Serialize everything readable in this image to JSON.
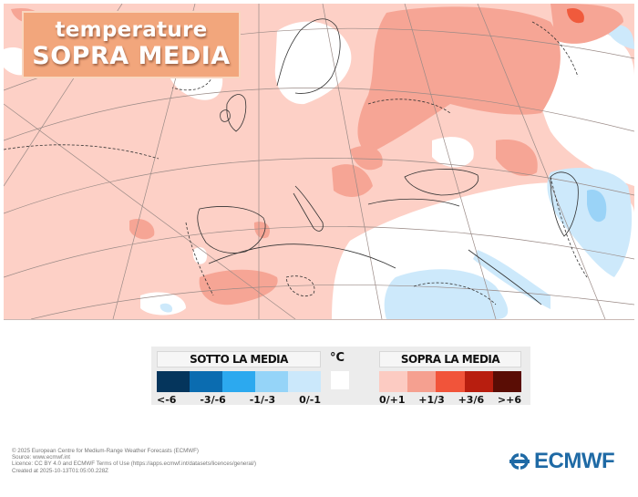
{
  "title": {
    "line1": "temperature",
    "line2": "SOPRA MEDIA"
  },
  "map": {
    "description": "ECMWF temperature anomaly map over Europe, North Atlantic, North Africa and Middle East",
    "colors": {
      "background_anomaly": "#fdd0c6",
      "plus_1_3": "#f6a595",
      "plus_3_6": "#f05a3c",
      "neutral": "#ffffff",
      "minus_0_1": "#cde9fb",
      "minus_1_3": "#9ad3f7"
    }
  },
  "legend": {
    "below": {
      "header": "SOTTO LA MEDIA",
      "items": [
        {
          "label": "<-6",
          "color": "#05355c"
        },
        {
          "label": "-3/-6",
          "color": "#0b6cb0"
        },
        {
          "label": "-1/-3",
          "color": "#2ca9ef"
        },
        {
          "label": "0/-1",
          "color": "#95d4f8"
        },
        {
          "label": "",
          "color": "#cbe8fb"
        }
      ],
      "labels": [
        "<-6",
        "-3/-6",
        "-1/-3",
        "0/-1"
      ]
    },
    "unit": "°C",
    "neutral_color": "#ffffff",
    "above": {
      "header": "SOPRA LA MEDIA",
      "items": [
        {
          "color": "#fccbc2"
        },
        {
          "color": "#f5a090"
        },
        {
          "color": "#f1543a"
        },
        {
          "color": "#b81e0f"
        },
        {
          "color": "#5a0d05"
        }
      ],
      "labels": [
        "0/+1",
        "+1/3",
        "+3/6",
        ">+6"
      ]
    }
  },
  "credits": {
    "line1": "© 2025 European Centre for Medium-Range Weather Forecasts (ECMWF)",
    "line2": "Source: www.ecmwf.int",
    "line3": "Licence: CC BY 4.0 and ECMWF Terms of Use (https://apps.ecmwf.int/datasets/licences/general/)",
    "line4": "Created at 2025-10-13T01:05:00.228Z"
  },
  "logo": {
    "text": "ECMWF",
    "color": "#1f6aa5"
  }
}
